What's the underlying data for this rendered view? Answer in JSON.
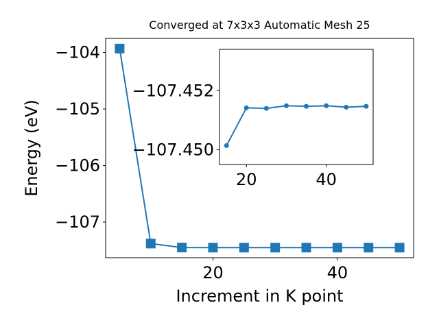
{
  "chart_data": [
    {
      "type": "line",
      "title": "Converged at 7x3x3 Automatic Mesh 25",
      "x_label": "Increment in K point",
      "y_label": "Energy (eV)",
      "x": [
        5,
        10,
        15,
        20,
        25,
        30,
        35,
        40,
        45,
        50
      ],
      "values": [
        -103.93,
        -107.38,
        -107.45014,
        -107.45142,
        -107.4514,
        -107.45149,
        -107.45147,
        -107.45149,
        -107.45144,
        -107.45147
      ],
      "color": "#1f77b4",
      "marker": "square",
      "xlim": [
        2.75,
        52.25
      ],
      "xticks": [
        20,
        40
      ],
      "ylim": [
        -107.63,
        -103.75
      ],
      "yticks": [
        {
          "value": -104,
          "label": "−104"
        },
        {
          "value": -105,
          "label": "−105"
        },
        {
          "value": -106,
          "label": "−106"
        },
        {
          "value": -107,
          "label": "−107"
        }
      ]
    },
    {
      "type": "line",
      "x": [
        15,
        20,
        25,
        30,
        35,
        40,
        45,
        50
      ],
      "values": [
        -107.45014,
        -107.45142,
        -107.4514,
        -107.45149,
        -107.45147,
        -107.45149,
        -107.45144,
        -107.45147
      ],
      "color": "#1f77b4",
      "marker": "circle",
      "xlim": [
        13.25,
        51.75
      ],
      "xticks": [
        20,
        40
      ],
      "ylim": [
        -107.4495,
        -107.4534
      ],
      "yticks": [
        {
          "value": -107.452,
          "label": "−107.452"
        },
        {
          "value": -107.45,
          "label": "−107.450"
        }
      ]
    }
  ]
}
